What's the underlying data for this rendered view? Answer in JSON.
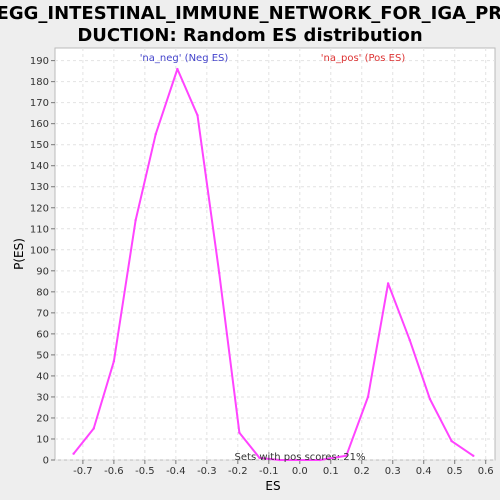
{
  "chart_data": {
    "type": "line",
    "title": "KEGG_INTESTINAL_IMMUNE_NETWORK_FOR_IGA_PRODUCTION: Random ES distribution",
    "title_lines": [
      "KEGG_INTESTINAL_IMMUNE_NETWORK_FOR_IGA_PRO",
      "DUCTION: Random ES distribution"
    ],
    "xlabel": "ES",
    "ylabel": "P(ES)",
    "xlim": [
      -0.79,
      0.63
    ],
    "ylim": [
      0,
      196
    ],
    "xticks": [
      -0.7,
      -0.6,
      -0.5,
      -0.4,
      -0.3,
      -0.2,
      -0.1,
      0.0,
      0.1,
      0.2,
      0.3,
      0.4,
      0.5,
      0.6
    ],
    "xtick_labels": [
      "-0.7",
      "-0.6",
      "-0.5",
      "-0.4",
      "-0.3",
      "-0.2",
      "-0.1",
      "0.0",
      "0.1",
      "0.2",
      "0.3",
      "0.4",
      "0.5",
      "0.6"
    ],
    "yticks": [
      0,
      10,
      20,
      30,
      40,
      50,
      60,
      70,
      80,
      90,
      100,
      110,
      120,
      130,
      140,
      150,
      160,
      170,
      180,
      190
    ],
    "grid": true,
    "line_color": "#ff44ff",
    "series": [
      {
        "x": [
          -0.73,
          -0.665,
          -0.6,
          -0.53,
          -0.465,
          -0.395,
          -0.33,
          -0.26,
          -0.195,
          -0.13,
          -0.065,
          0.0,
          0.065,
          0.15,
          0.22,
          0.285,
          0.355,
          0.42,
          0.49,
          0.56
        ],
        "values": [
          3,
          15,
          47,
          114,
          155,
          186,
          164,
          89,
          13,
          1,
          0,
          0,
          0,
          2,
          30,
          84,
          57,
          29,
          9,
          2
        ]
      }
    ],
    "annotations": [
      {
        "text": "'na_neg' (Neg ES)",
        "color": "#4444cc",
        "x": -0.4,
        "y": 190
      },
      {
        "text": "'na_pos' (Pos ES)",
        "color": "#dd3333",
        "x": 0.21,
        "y": 190
      },
      {
        "text": "Sets with pos scores: 21%",
        "color": "#333333",
        "x": 0.0,
        "y": 0
      }
    ]
  }
}
